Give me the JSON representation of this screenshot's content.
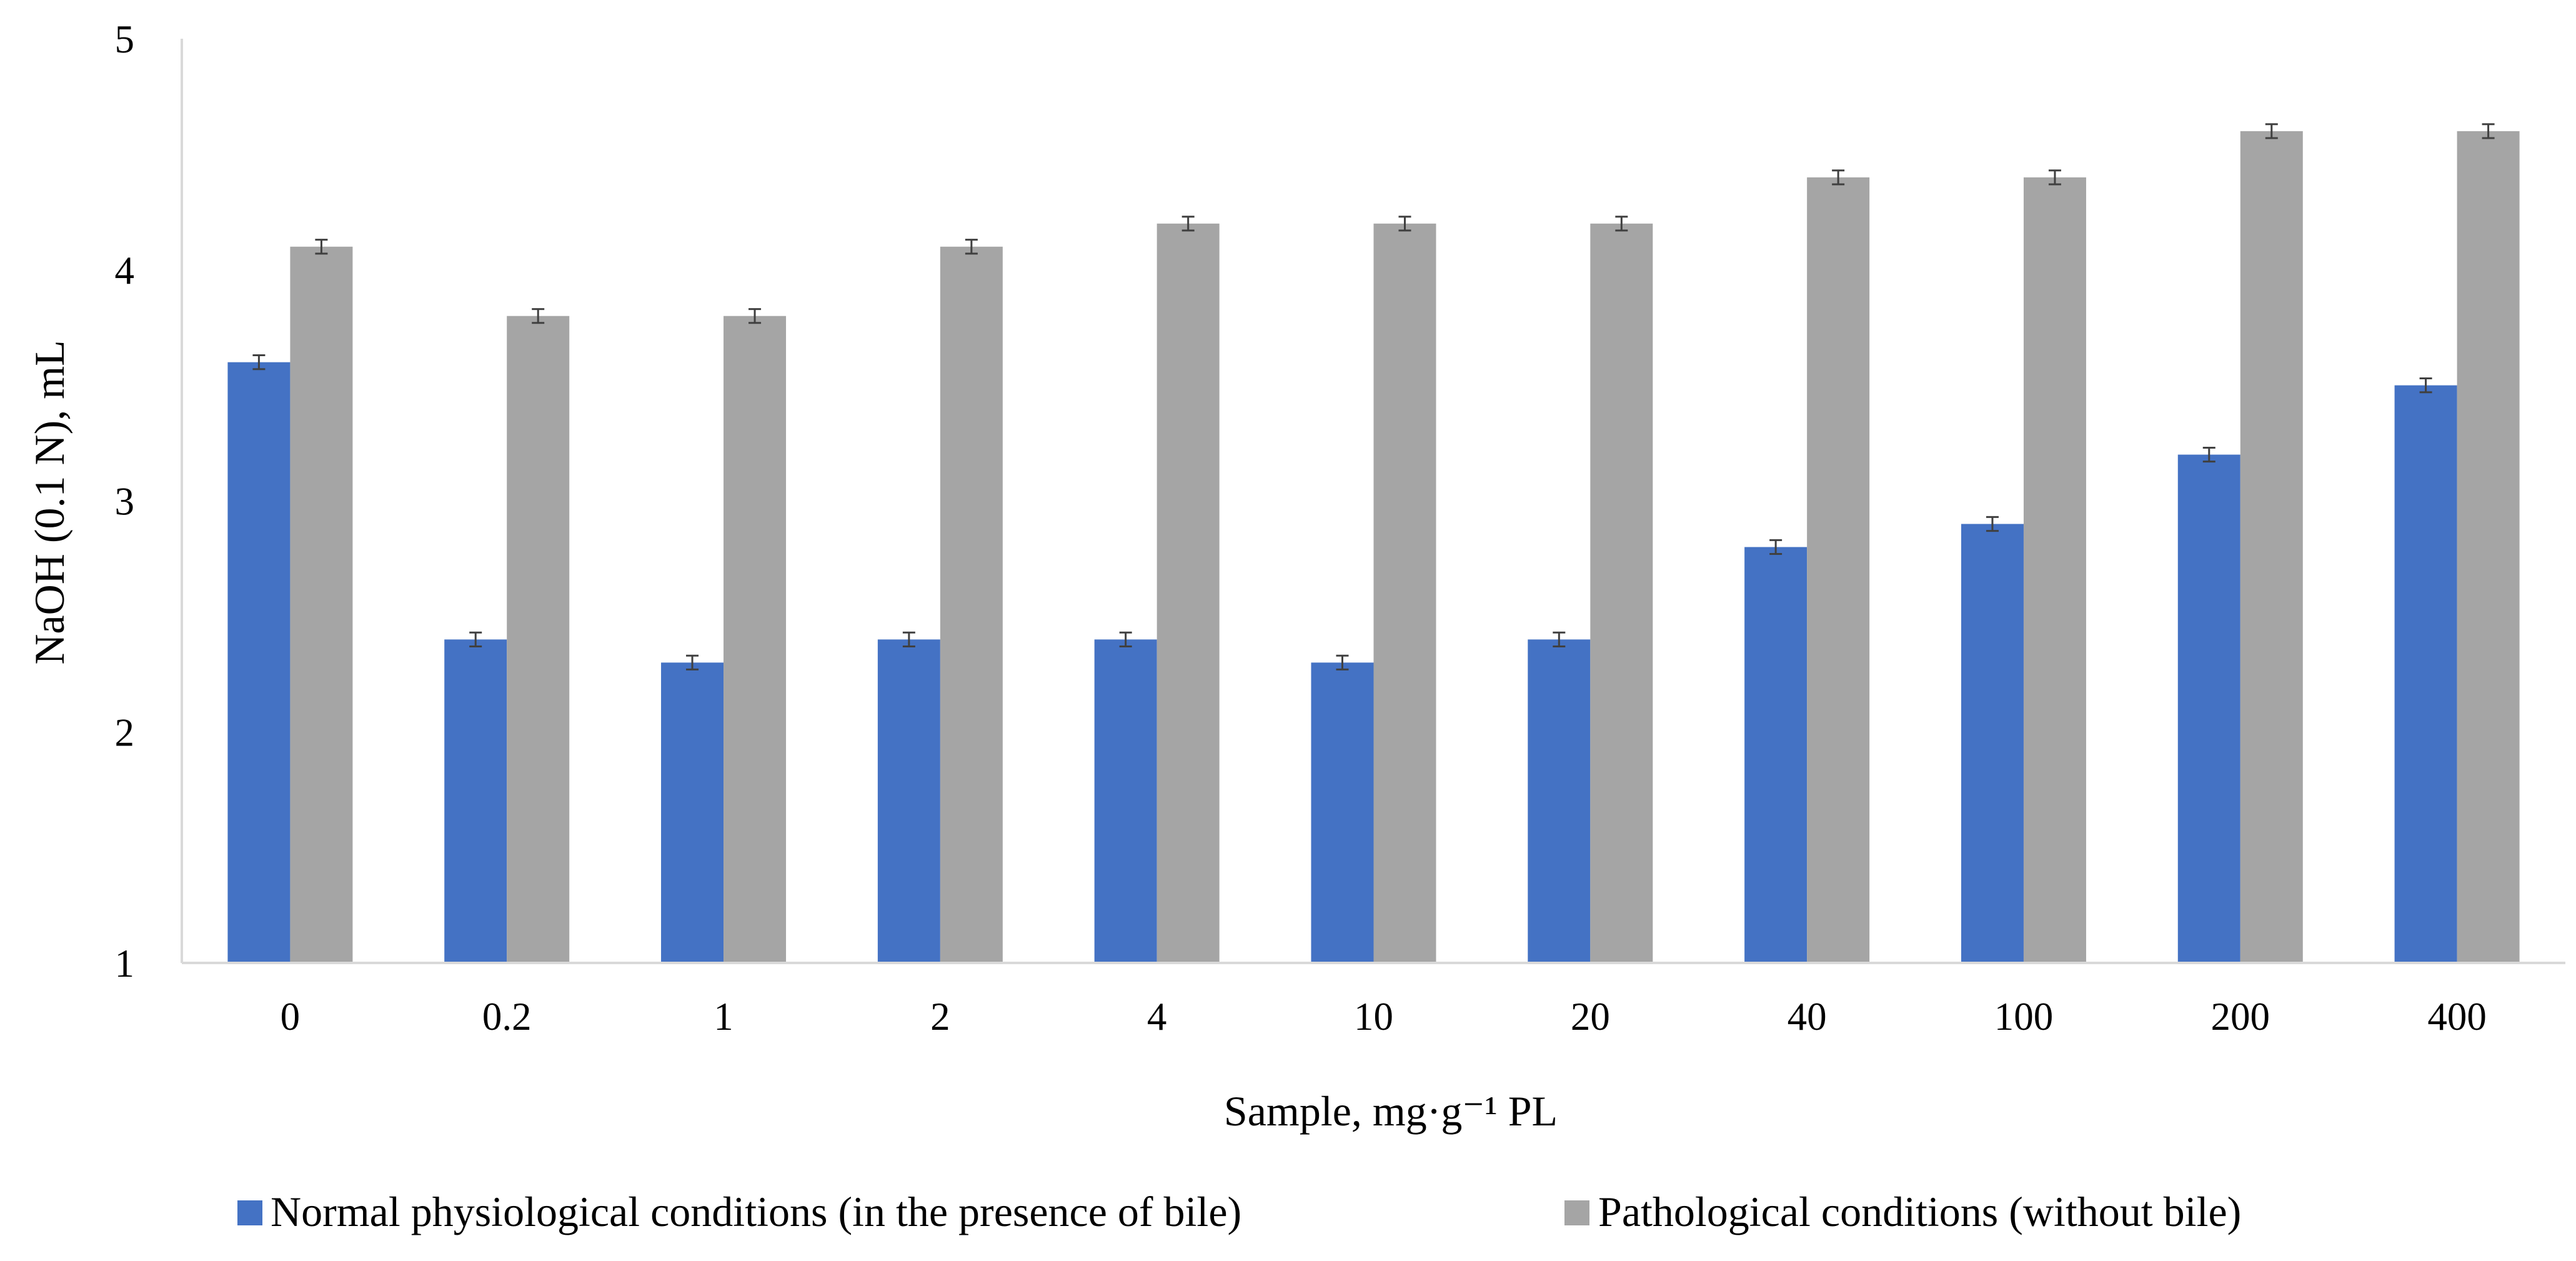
{
  "chart_data": {
    "type": "bar",
    "title": "",
    "xlabel": "Sample, mg·g⁻¹ PL",
    "ylabel": "NaOH (0.1 N), mL",
    "ylim": [
      1,
      5
    ],
    "yticks": [
      "1",
      "2",
      "3",
      "4",
      "5"
    ],
    "categories": [
      "0",
      "0.2",
      "1",
      "2",
      "4",
      "10",
      "20",
      "40",
      "100",
      "200",
      "400"
    ],
    "series": [
      {
        "name": "Normal physiological conditions (in the presence of bile)",
        "color": "#4472C4",
        "values": [
          3.6,
          2.4,
          2.3,
          2.4,
          2.4,
          2.3,
          2.4,
          2.8,
          2.9,
          3.2,
          3.5
        ],
        "error": [
          0.03,
          0.03,
          0.03,
          0.03,
          0.03,
          0.03,
          0.03,
          0.03,
          0.03,
          0.03,
          0.03
        ]
      },
      {
        "name": "Pathological conditions (without bile)",
        "color": "#A5A5A5",
        "values": [
          4.1,
          3.8,
          3.8,
          4.1,
          4.2,
          4.2,
          4.2,
          4.4,
          4.4,
          4.6,
          4.6
        ],
        "error": [
          0.03,
          0.03,
          0.03,
          0.03,
          0.03,
          0.03,
          0.03,
          0.03,
          0.03,
          0.03,
          0.03
        ]
      }
    ],
    "legend": "bottom",
    "grid": false
  }
}
